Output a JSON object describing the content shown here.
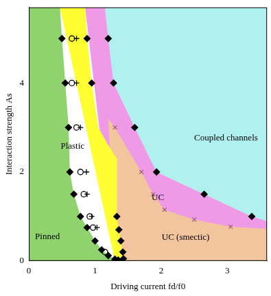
{
  "chart_data": {
    "type": "scatter",
    "x_label": "Driving current fd/f0",
    "y_label": "Interaction strength As",
    "xlim": [
      0,
      3.6
    ],
    "xticks": [
      0,
      1,
      2,
      3
    ],
    "ylim": [
      0,
      5.7
    ],
    "yticks": [
      0,
      2,
      4
    ],
    "grid": false,
    "regions": [
      {
        "name": "Coupled channels",
        "color": "#b0f0ee",
        "label_x": 2.98,
        "label_y": 2.76,
        "x": [
          1.15,
          3.6,
          3.6,
          3.37,
          2.65,
          1.93,
          1.6,
          1.28,
          1.2
        ],
        "y": [
          5.7,
          5.7,
          0.9,
          1.0,
          1.5,
          2.0,
          3.0,
          4.0,
          5.0
        ]
      },
      {
        "name": "UC",
        "color": "#ee9ae6",
        "label_x": 1.95,
        "label_y": 1.42,
        "x": [
          0.85,
          1.15,
          1.2,
          1.28,
          1.6,
          1.93,
          2.65,
          3.37,
          3.6,
          3.6,
          1.3
        ],
        "y": [
          5.7,
          5.7,
          5.0,
          4.0,
          3.0,
          2.0,
          1.5,
          1.0,
          0.9,
          0,
          0
        ]
      },
      {
        "name": "UC (smectic)",
        "color": "#f3c59f",
        "label_x": 2.37,
        "label_y": 0.52,
        "x": [
          1.2,
          1.3,
          1.7,
          1.88,
          2.05,
          2.5,
          3.05,
          3.6,
          3.6,
          1.3
        ],
        "y": [
          3.2,
          3.0,
          2.0,
          1.5,
          1.15,
          0.93,
          0.77,
          0.72,
          0,
          0
        ]
      },
      {
        "name": "Plastic",
        "color": "#ffff33",
        "label_x": 0.66,
        "label_y": 2.58,
        "x": [
          0.47,
          0.85,
          0.88,
          0.95,
          1.05,
          1.2,
          1.33,
          1.33,
          1.36,
          1.39,
          1.42,
          1.45,
          1.3
        ],
        "y": [
          5.7,
          5.7,
          5.0,
          4.0,
          3.0,
          2.6,
          2.3,
          1.0,
          0.7,
          0.45,
          0.2,
          0,
          0
        ]
      },
      {
        "name": "Pinned",
        "color": "#8fd26e",
        "label_x": 0.28,
        "label_y": 0.55,
        "x": [
          0,
          0,
          0.47,
          0.5,
          0.55,
          0.6,
          0.62,
          0.68,
          0.78,
          0.88,
          1.0,
          1.1,
          1.2,
          1.3,
          1.35
        ],
        "y": [
          0,
          5.7,
          5.7,
          5.0,
          4.0,
          3.0,
          2.0,
          1.5,
          1.0,
          0.75,
          0.45,
          0.25,
          0.12,
          0.04,
          0
        ]
      }
    ],
    "series": [
      {
        "marker": "diamond",
        "color": "#000000",
        "x": [
          0.5,
          0.55,
          0.6,
          0.62,
          0.68,
          0.78,
          0.88,
          1.0,
          1.1,
          1.2,
          1.3,
          1.35,
          0.88,
          0.95,
          1.33,
          1.36,
          1.39,
          1.42,
          1.43,
          1.2,
          1.28,
          1.6,
          1.93,
          2.65,
          3.37
        ],
        "y": [
          5.0,
          4.0,
          3.0,
          2.0,
          1.5,
          1.0,
          0.75,
          0.45,
          0.25,
          0.12,
          0.04,
          0.02,
          5.0,
          4.0,
          1.0,
          0.7,
          0.45,
          0.2,
          0.05,
          5.0,
          4.0,
          3.0,
          2.0,
          1.5,
          1.0
        ]
      },
      {
        "marker": "circle",
        "color": "#000000",
        "x": [
          0.65,
          0.65,
          0.72,
          0.78,
          0.83,
          0.92,
          0.97,
          1.15
        ],
        "y": [
          5.0,
          4.0,
          3.0,
          2.0,
          1.5,
          1.0,
          0.75,
          0.2
        ]
      },
      {
        "marker": "plus",
        "color": "#000000",
        "x": [
          0.72,
          0.72,
          0.78,
          0.87,
          0.88,
          0.95,
          1.03
        ],
        "y": [
          5.0,
          4.0,
          3.0,
          2.0,
          1.5,
          1.0,
          0.75
        ]
      },
      {
        "marker": "x",
        "color": "#a0607a",
        "x": [
          1.3,
          1.7,
          1.88,
          2.05,
          2.5,
          3.05
        ],
        "y": [
          3.0,
          2.0,
          1.5,
          1.15,
          0.93,
          0.77
        ]
      }
    ]
  }
}
